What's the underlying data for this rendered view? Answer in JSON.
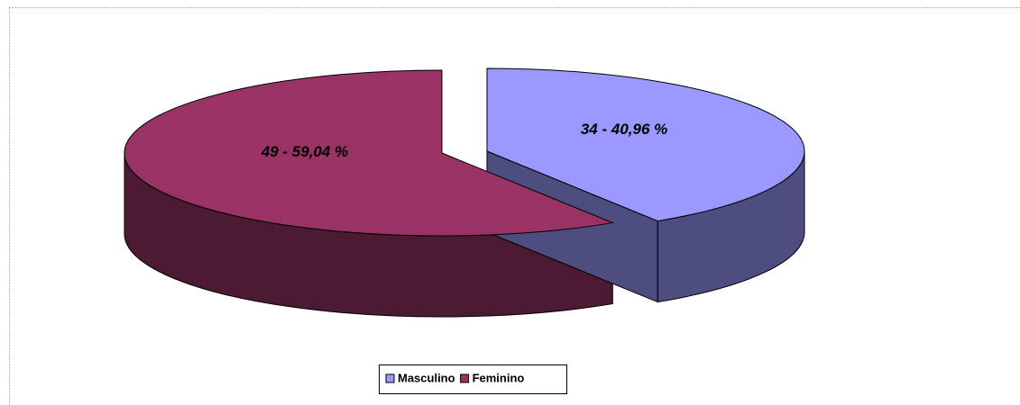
{
  "chart_data": {
    "type": "pie3d",
    "categories": [
      "Masculino",
      "Feminino"
    ],
    "values": [
      34,
      49
    ],
    "value_labels": [
      "34 - 40,96 %",
      "49 - 59,04 %"
    ],
    "colors": [
      "#9999ff",
      "#993366"
    ],
    "legend": "bottom"
  }
}
